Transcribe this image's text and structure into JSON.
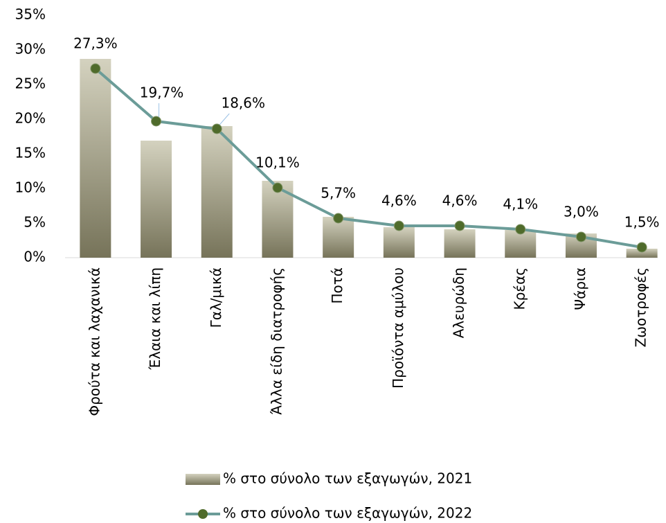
{
  "chart_data": {
    "type": "bar_line",
    "categories": [
      "Φρούτα και λαχανικά",
      "Έλαια και λίπη",
      "Γαλ/μικά",
      "Άλλα είδη διατροφής",
      "Ποτά",
      "Προϊόντα αμύλου",
      "Αλευρώδη",
      "Κρέας",
      "Ψάρια",
      "Ζωοτροφές"
    ],
    "series": [
      {
        "name": "% στο σύνολο των εξαγωγών, 2021",
        "type": "bar",
        "color": "#a9a47f",
        "values": [
          28.7,
          16.9,
          19.0,
          11.1,
          5.9,
          4.4,
          4.1,
          4.0,
          3.5,
          1.3
        ]
      },
      {
        "name": "% στο σύνολο των εξαγωγών, 2022",
        "type": "line",
        "color": "#6b9c98",
        "marker_color": "#4f6b2b",
        "values": [
          27.3,
          19.7,
          18.6,
          10.1,
          5.7,
          4.6,
          4.6,
          4.1,
          3.0,
          1.5
        ],
        "value_labels": [
          "27,3%",
          "19,7%",
          "18,6%",
          "10,1%",
          "5,7%",
          "4,6%",
          "4,6%",
          "4,1%",
          "3,0%",
          "1,5%"
        ]
      }
    ],
    "ylim": [
      0,
      35
    ],
    "yticks": [
      {
        "value": 0,
        "label": "0%"
      },
      {
        "value": 5,
        "label": "5%"
      },
      {
        "value": 10,
        "label": "10%"
      },
      {
        "value": 15,
        "label": "15%"
      },
      {
        "value": 20,
        "label": "20%"
      },
      {
        "value": 25,
        "label": "25%"
      },
      {
        "value": 30,
        "label": "30%"
      },
      {
        "value": 35,
        "label": "35%"
      }
    ],
    "grid": false,
    "legend": "bottom"
  }
}
